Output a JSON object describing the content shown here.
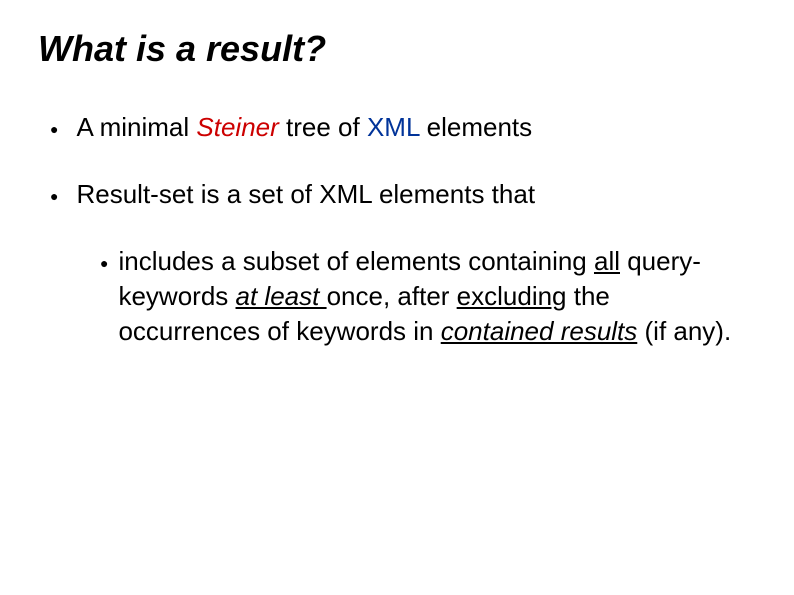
{
  "title": "What is a result?",
  "bullets": {
    "item1": {
      "pre": "A minimal ",
      "steiner": "Steiner",
      "mid": " tree of ",
      "xml": "XML",
      "post": " elements"
    },
    "item2": {
      "text": "Result-set is a set of XML elements that"
    },
    "sub1": {
      "p1": "includes a subset of elements containing ",
      "all": "all",
      "p2": " query-keywords ",
      "atleast": "at least ",
      "p3": "once, after ",
      "excluding": "excluding",
      "p4": " the occurrences of keywords in ",
      "contained": "contained results",
      "p5": " (if any)."
    }
  },
  "style": {
    "title_fontsize": 36,
    "body_fontsize": 26,
    "bullet_marker": "●",
    "red": "#cc0000",
    "blue": "#003399",
    "background": "#ffffff",
    "text_color": "#000000"
  }
}
